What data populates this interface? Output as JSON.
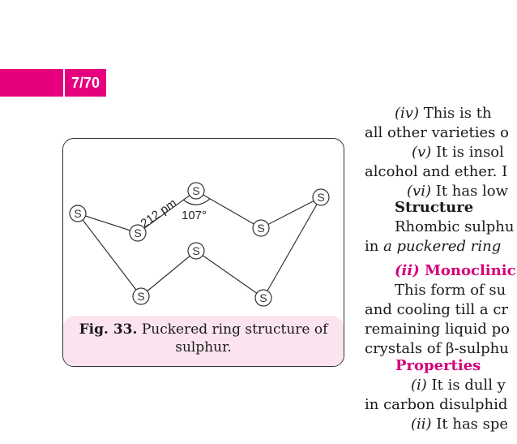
{
  "header": {
    "page_indicator": "7/70",
    "tab_color": "#e6007e"
  },
  "figure": {
    "label": "Fig. 33.",
    "caption": "Puckered ring structure of sulphur.",
    "atom_symbol": "S",
    "bond_length": "212 pm",
    "bond_angle": "107°"
  },
  "text_lines": [
    {
      "prefix": "(iv)",
      "text": " This is th"
    },
    {
      "text": "all other varieties o"
    },
    {
      "prefix": "(v)",
      "text": " It is insol"
    },
    {
      "text": "alcohol and ether. I"
    },
    {
      "prefix": "(vi)",
      "text": " It has low"
    },
    {
      "text": "Structure"
    },
    {
      "text": "Rhombic sulphu"
    },
    {
      "prefix": "in ",
      "emph": "a puckered ring"
    },
    {
      "prefix": "(ii)",
      "text": " Monoclinic"
    },
    {
      "text": "This form of su"
    },
    {
      "text": "and cooling till a cr"
    },
    {
      "text": "remaining liquid po"
    },
    {
      "text": "crystals of β-sulphu"
    },
    {
      "text": "Properties"
    },
    {
      "prefix": "(i)",
      "text": " It is dull y"
    },
    {
      "text": "in carbon disulphid"
    },
    {
      "prefix": "(ii)",
      "text": " It has spe"
    }
  ]
}
